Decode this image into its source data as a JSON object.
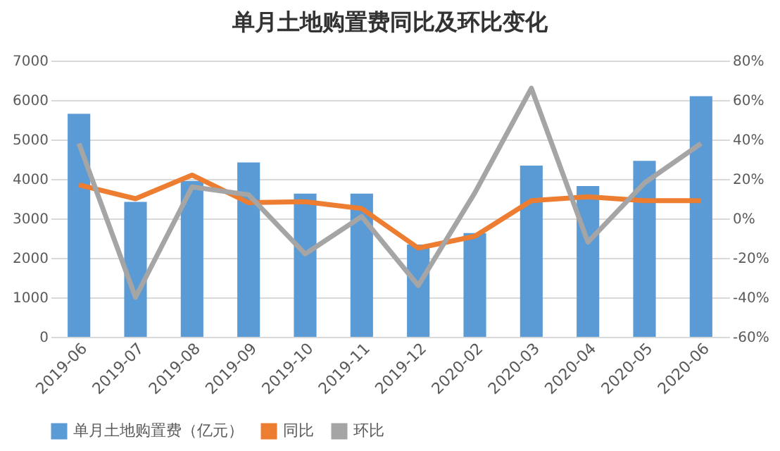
{
  "chart_data": {
    "type": "bar",
    "title": "单月土地购置费同比及环比变化",
    "categories": [
      "2019-06",
      "2019-07",
      "2019-08",
      "2019-09",
      "2019-10",
      "2019-11",
      "2019-12",
      "2020-02",
      "2020-03",
      "2020-04",
      "2020-05",
      "2020-06"
    ],
    "series": [
      {
        "name": "单月土地购置费（亿元）",
        "color": "#5b9bd5",
        "values": [
          5650,
          3420,
          3950,
          4420,
          3630,
          3630,
          2340,
          2630,
          4340,
          3820,
          4460,
          6100
        ]
      },
      {
        "name": "同比",
        "type": "line",
        "axis": "y2",
        "color": "#ed7d31",
        "values": [
          17,
          10,
          22,
          8,
          8.5,
          5,
          -15,
          -9,
          9,
          11,
          9,
          9
        ]
      },
      {
        "name": "环比",
        "type": "line",
        "axis": "y2",
        "color": "#a5a5a5",
        "values": [
          38,
          -40,
          16,
          12,
          -18,
          1,
          -34,
          13,
          66,
          -12,
          18,
          38
        ]
      }
    ],
    "ylim": [
      0,
      7000
    ],
    "yticks": [
      0,
      1000,
      2000,
      3000,
      4000,
      5000,
      6000,
      7000
    ],
    "y2lim": [
      -60,
      80
    ],
    "y2ticks": [
      {
        "value": -60,
        "label": "-60%"
      },
      {
        "value": -40,
        "label": "-40%"
      },
      {
        "value": -20,
        "label": "-20%"
      },
      {
        "value": 0,
        "label": "0%"
      },
      {
        "value": 20,
        "label": "20%"
      },
      {
        "value": 40,
        "label": "40%"
      },
      {
        "value": 60,
        "label": "60%"
      },
      {
        "value": 80,
        "label": "80%"
      }
    ],
    "grid": "y",
    "legend": "bottom"
  }
}
